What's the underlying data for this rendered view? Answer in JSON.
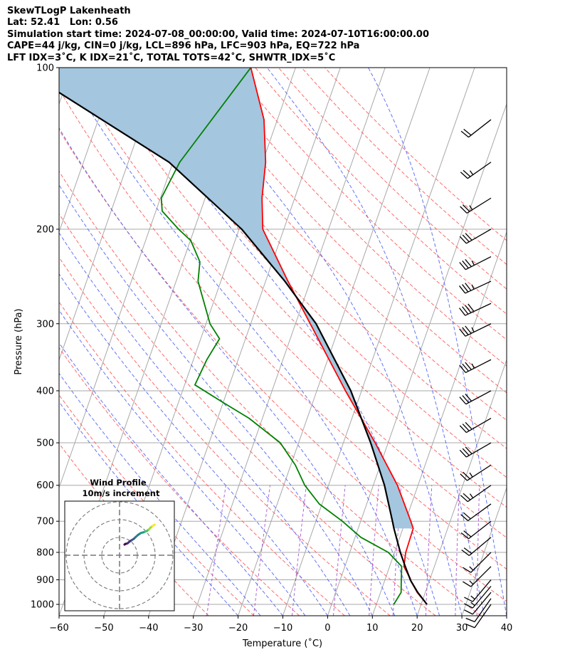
{
  "header": {
    "line1": "SkewTLogP Lakenheath",
    "line2": "Lat: 52.41   Lon: 0.56",
    "line3": "Simulation start time: 2024-07-08_00:00:00, Valid time: 2024-07-10T16:00:00.00",
    "line4": "CAPE=44 j/kg, CIN=0 j/kg, LCL=896 hPa, LFC=903 hPa, EQ=722 hPa",
    "line5": "LFT IDX=3˚C, K IDX=21˚C, TOTAL TOTS=42˚C, SHWTR_IDX=5˚C"
  },
  "colors": {
    "temperature": "#ff0000",
    "dewpoint": "#008000",
    "parcel": "#000000",
    "cape_fill": "#a4c6de",
    "dry_adiabat": "#ff5050",
    "moist_adiabat": "#4a5cf0",
    "mixing_ratio": "#9b40c8",
    "isotherm": "#a8a8a8",
    "isobar": "#a8a8a8"
  },
  "chart_data": {
    "type": "line",
    "subtype": "skew-T log-P",
    "xlabel": "Temperature (˚C)",
    "ylabel": "Pressure (hPa)",
    "xlim": [
      -60,
      40
    ],
    "ylim": [
      1050,
      100
    ],
    "y_scale": "log",
    "x_ticks": [
      "−60",
      "−50",
      "−40",
      "−30",
      "−20",
      "−10",
      "0",
      "10",
      "20",
      "30",
      "40"
    ],
    "y_ticks": [
      "100",
      "200",
      "300",
      "400",
      "500",
      "600",
      "700",
      "800",
      "900",
      "1000"
    ],
    "grid": true,
    "series": [
      {
        "key": "temperature",
        "values": [
          [
            1000,
            21.3
          ],
          [
            950,
            18.2
          ],
          [
            903,
            15.8
          ],
          [
            896,
            15.6
          ],
          [
            850,
            13.2
          ],
          [
            800,
            12.5
          ],
          [
            722,
            12.3
          ],
          [
            700,
            11.2
          ],
          [
            600,
            5.4
          ],
          [
            500,
            -2.9
          ],
          [
            400,
            -13.6
          ],
          [
            300,
            -26.7
          ],
          [
            250,
            -35.0
          ],
          [
            200,
            -44.7
          ],
          [
            175,
            -47.3
          ],
          [
            150,
            -49.3
          ],
          [
            125,
            -53.0
          ],
          [
            100,
            -60.0
          ]
        ]
      },
      {
        "key": "dewpoint",
        "values": [
          [
            1000,
            13.9
          ],
          [
            950,
            14.6
          ],
          [
            903,
            13.7
          ],
          [
            850,
            12.7
          ],
          [
            800,
            8.6
          ],
          [
            750,
            1.3
          ],
          [
            700,
            -4.1
          ],
          [
            650,
            -10.6
          ],
          [
            600,
            -15.3
          ],
          [
            550,
            -19.0
          ],
          [
            500,
            -24.1
          ],
          [
            450,
            -33.0
          ],
          [
            420,
            -40.2
          ],
          [
            390,
            -47.7
          ],
          [
            350,
            -47.0
          ],
          [
            320,
            -45.8
          ],
          [
            300,
            -49.1
          ],
          [
            250,
            -55.1
          ],
          [
            230,
            -56.2
          ],
          [
            210,
            -59.9
          ],
          [
            200,
            -63.5
          ],
          [
            185,
            -68.6
          ],
          [
            175,
            -69.8
          ],
          [
            150,
            -68.5
          ],
          [
            100,
            -60.0
          ]
        ]
      },
      {
        "key": "parcel",
        "values": [
          [
            1000,
            21.3
          ],
          [
            950,
            18.3
          ],
          [
            903,
            15.8
          ],
          [
            850,
            13.5
          ],
          [
            800,
            11.3
          ],
          [
            722,
            8.0
          ],
          [
            700,
            7.1
          ],
          [
            600,
            2.5
          ],
          [
            500,
            -3.9
          ],
          [
            400,
            -12.4
          ],
          [
            300,
            -25.4
          ],
          [
            250,
            -35.7
          ],
          [
            200,
            -49.4
          ],
          [
            150,
            -70.9
          ],
          [
            100,
            -111.6
          ]
        ]
      }
    ],
    "cape_region": {
      "bottom_hPa": 722,
      "top_hPa": 100
    },
    "wind_barbs": {
      "pressures": [
        1000,
        975,
        950,
        925,
        900,
        850,
        800,
        750,
        700,
        650,
        600,
        550,
        500,
        450,
        400,
        350,
        300,
        275,
        250,
        225,
        200,
        175,
        150,
        125
      ],
      "speeds_kt": [
        10,
        12,
        14,
        15,
        15,
        15,
        17,
        20,
        22,
        24,
        26,
        28,
        30,
        32,
        34,
        36,
        38,
        40,
        38,
        35,
        32,
        28,
        25,
        22
      ],
      "dirs_deg": [
        215,
        215,
        220,
        220,
        220,
        225,
        225,
        230,
        232,
        234,
        235,
        237,
        240,
        240,
        242,
        243,
        244,
        245,
        245,
        243,
        240,
        238,
        235,
        232
      ]
    },
    "hodograph": {
      "title": "Wind Profile",
      "subtitle": "10m/s increment",
      "u_ms": [
        2.8,
        3.2,
        3.5,
        4.5,
        5.5,
        7.0,
        8.0,
        9.0,
        10.5,
        12.0,
        13.5,
        14.5,
        15.3,
        16.5,
        17.5,
        18.5,
        19.3,
        19.8
      ],
      "v_ms": [
        6.0,
        6.3,
        6.4,
        6.7,
        7.6,
        8.6,
        9.2,
        10.2,
        11.5,
        12.5,
        12.9,
        13.3,
        13.6,
        14.5,
        15.6,
        16.4,
        16.9,
        17.2
      ],
      "ring_step_ms": 10,
      "rings": 3
    }
  }
}
